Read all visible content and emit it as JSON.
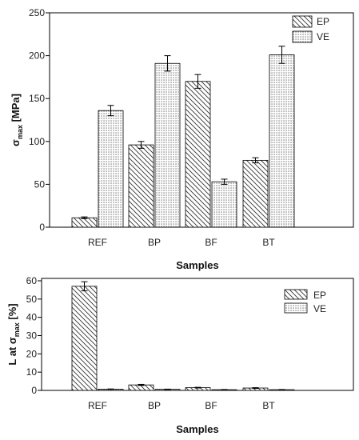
{
  "chart_data": [
    {
      "type": "bar",
      "categories": [
        "REF",
        "BP",
        "BF",
        "BT"
      ],
      "series": [
        {
          "name": "EP",
          "values": [
            11,
            96,
            170,
            78
          ],
          "errors": [
            1,
            4,
            8,
            3
          ],
          "pattern": "diagonal-hatch"
        },
        {
          "name": "VE",
          "values": [
            136,
            191,
            53,
            201
          ],
          "errors": [
            6,
            9,
            3,
            10
          ],
          "pattern": "dots"
        }
      ],
      "xlabel": "Samples",
      "ylabel": {
        "prefix": "σ",
        "sub": "max",
        "suffix": " [MPa]"
      },
      "ylim": [
        0,
        250
      ],
      "yticks": [
        "0",
        "50",
        "100",
        "150",
        "200",
        "250"
      ],
      "legend_position": "top-right",
      "grid": false
    },
    {
      "type": "bar",
      "categories": [
        "REF",
        "BP",
        "BF",
        "BT"
      ],
      "series": [
        {
          "name": "EP",
          "values": [
            57,
            3,
            1.5,
            1.3
          ],
          "errors": [
            2.5,
            0.3,
            0.2,
            0.2
          ],
          "pattern": "diagonal-hatch"
        },
        {
          "name": "VE",
          "values": [
            0.7,
            0.6,
            0.4,
            0.4
          ],
          "errors": [
            0.1,
            0.1,
            0.1,
            0.1
          ],
          "pattern": "dots"
        }
      ],
      "xlabel": "Samples",
      "ylabel": {
        "prefix": "L at σ",
        "sub": "max",
        "suffix": " [%]"
      },
      "ylim": [
        0,
        60
      ],
      "yticks": [
        "0",
        "10",
        "20",
        "30",
        "40",
        "50",
        "60"
      ],
      "legend_position": "top-right",
      "grid": false
    }
  ]
}
